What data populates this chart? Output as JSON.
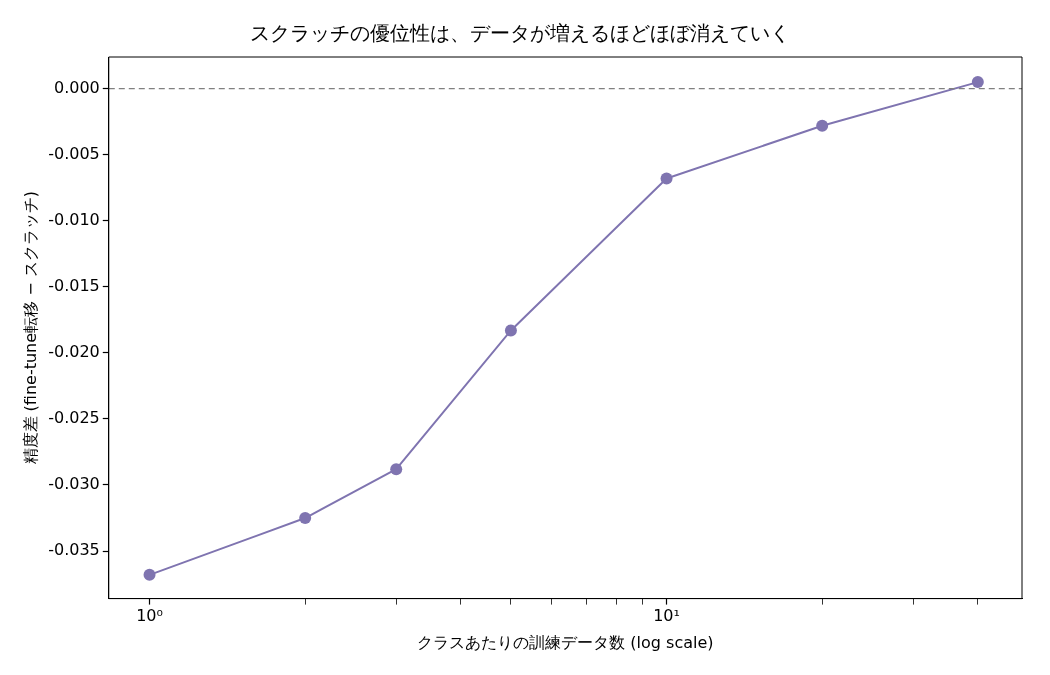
{
  "chart_data": {
    "type": "line",
    "title": "スクラッチの優位性は、データが増えるほどほぼ消えていく",
    "xlabel": "クラスあたりの訓練データ数 (log scale)",
    "ylabel": "精度差 (fine-tune転移 − スクラッチ)",
    "x": [
      1,
      2,
      3,
      5,
      10,
      20,
      40
    ],
    "series": [
      {
        "color": "#7f74b0",
        "values": [
          -0.0368,
          -0.0325,
          -0.0288,
          -0.0183,
          -0.0068,
          -0.0028,
          0.0005
        ]
      }
    ],
    "log": "x",
    "xlim": [
      0.834,
      48.7
    ],
    "ylim": [
      -0.0386,
      0.0024
    ],
    "xticks": [
      {
        "value": 1,
        "label": "10⁰"
      },
      {
        "value": 2,
        "label": null
      },
      {
        "value": 3,
        "label": null
      },
      {
        "value": 4,
        "label": null
      },
      {
        "value": 5,
        "label": null
      },
      {
        "value": 6,
        "label": null
      },
      {
        "value": 7,
        "label": null
      },
      {
        "value": 8,
        "label": null
      },
      {
        "value": 9,
        "label": null
      },
      {
        "value": 10,
        "label": "10¹"
      },
      {
        "value": 20,
        "label": null
      },
      {
        "value": 30,
        "label": null
      },
      {
        "value": 40,
        "label": null
      }
    ],
    "yticks": [
      {
        "value": 0,
        "label": "0.000"
      },
      {
        "value": -0.005,
        "label": "-0.005"
      },
      {
        "value": -0.01,
        "label": "-0.010"
      },
      {
        "value": -0.015,
        "label": "-0.015"
      },
      {
        "value": -0.02,
        "label": "-0.020"
      },
      {
        "value": -0.025,
        "label": "-0.025"
      },
      {
        "value": -0.03,
        "label": "-0.030"
      },
      {
        "value": -0.035,
        "label": "-0.035"
      }
    ],
    "ref_lines": [
      {
        "axis": "y",
        "value": 0,
        "color": "#808080",
        "line_style": "dashed"
      }
    ],
    "marker": "circle",
    "line_style": "solid",
    "grid": false,
    "legend": false
  }
}
